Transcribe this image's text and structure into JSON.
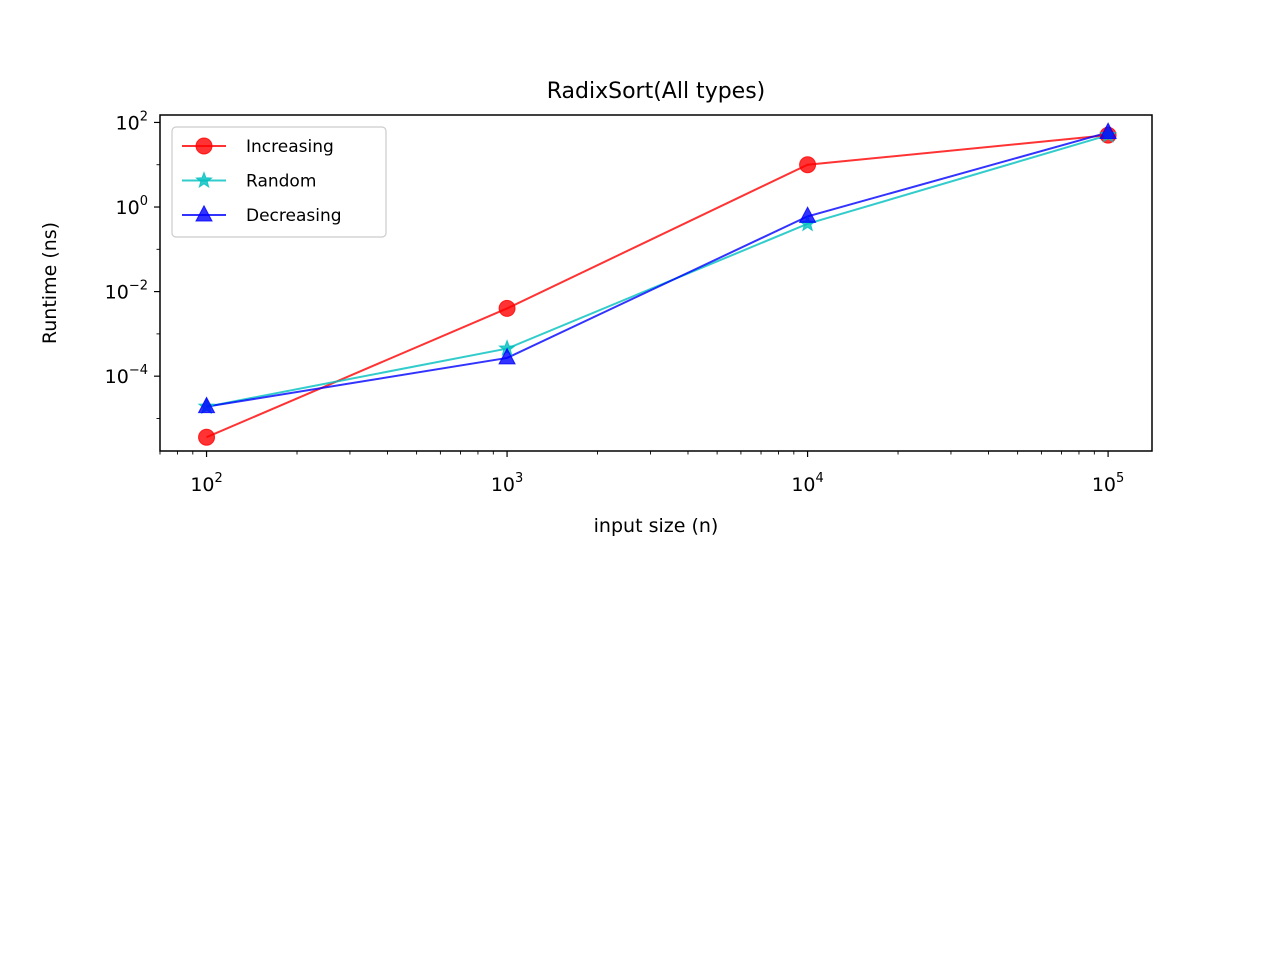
{
  "chart_data": {
    "type": "line",
    "title": "RadixSort(All types)",
    "xlabel": "input size (n)",
    "ylabel": "Runtime (ns)",
    "xscale": "log",
    "yscale": "log",
    "xlim": [
      70,
      140000
    ],
    "ylim": [
      1.7e-06,
      150
    ],
    "x_ticks": [
      {
        "value": 100,
        "base": "10",
        "exp": "2"
      },
      {
        "value": 1000,
        "base": "10",
        "exp": "3"
      },
      {
        "value": 10000,
        "base": "10",
        "exp": "4"
      },
      {
        "value": 100000,
        "base": "10",
        "exp": "5"
      }
    ],
    "y_ticks": [
      {
        "value": 0.0001,
        "base": "10",
        "exp": "−4"
      },
      {
        "value": 0.01,
        "base": "10",
        "exp": "−2"
      },
      {
        "value": 1,
        "base": "10",
        "exp": "0"
      },
      {
        "value": 100,
        "base": "10",
        "exp": "2"
      }
    ],
    "grid": false,
    "legend_position": "upper-left",
    "x": [
      100,
      1000,
      10000,
      100000
    ],
    "series": [
      {
        "name": "Increasing",
        "color": "#ff0000",
        "marker": "circle",
        "values": [
          3.6e-06,
          0.004,
          10,
          50
        ]
      },
      {
        "name": "Random",
        "color": "#00bfbf",
        "marker": "star",
        "values": [
          1.9e-05,
          0.00045,
          0.4,
          50
        ]
      },
      {
        "name": "Decreasing",
        "color": "#0000ff",
        "marker": "triangle",
        "values": [
          1.9e-05,
          0.00027,
          0.6,
          58
        ]
      }
    ]
  }
}
